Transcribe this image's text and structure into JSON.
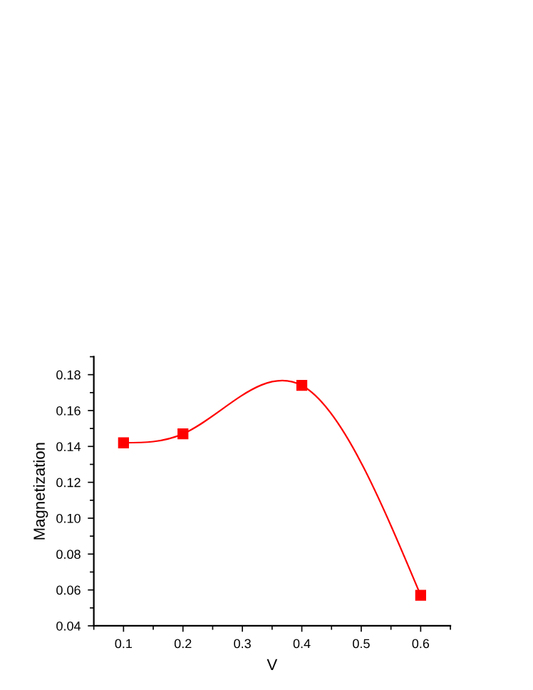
{
  "chart_data": {
    "type": "line",
    "xlabel": "V",
    "ylabel": "Magnetization",
    "x": [
      0.1,
      0.2,
      0.4,
      0.6
    ],
    "series": [
      {
        "color": "#ff0000",
        "values": [
          0.142,
          0.147,
          0.174,
          0.057
        ]
      }
    ],
    "xlim": [
      0.05,
      0.65
    ],
    "xticks": [
      0.1,
      0.2,
      0.3,
      0.4,
      0.5,
      0.6
    ],
    "ylim": [
      0.04,
      0.19
    ],
    "yticks": [
      0.04,
      0.06,
      0.08,
      {
        "value": 0.1,
        "label": "0.10"
      },
      0.12,
      0.14,
      0.16,
      0.18
    ],
    "marker": "square",
    "line_style": "solid",
    "grid": false
  }
}
